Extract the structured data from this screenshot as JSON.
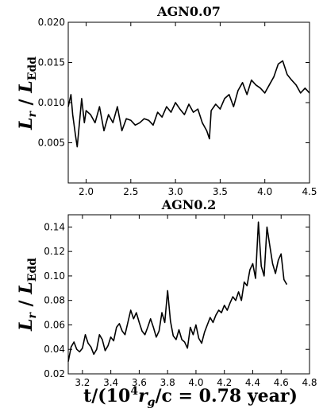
{
  "chart_data": [
    {
      "type": "line",
      "title": "AGN0.07",
      "ylabel": "L_r / L_Edd",
      "ylabel_main": "L",
      "ylabel_sub": "r",
      "ylabel_den": "L",
      "ylabel_den_sub": "Edd",
      "ylabel_sep": " / ",
      "xlabel": "",
      "xlim": [
        1.8,
        4.5
      ],
      "ylim": [
        0.0,
        0.02
      ],
      "xticks": [
        2.0,
        2.5,
        3.0,
        3.5,
        4.0,
        4.5
      ],
      "xtick_labels": [
        "2.0",
        "2.5",
        "3.0",
        "3.5",
        "4.0",
        "4.5"
      ],
      "yticks": [
        0.005,
        0.01,
        0.015,
        0.02
      ],
      "ytick_labels": [
        "0.005",
        "0.010",
        "0.015",
        "0.020"
      ],
      "grid": false,
      "series": [
        {
          "color": "#000000",
          "x": [
            1.8,
            1.83,
            1.85,
            1.88,
            1.9,
            1.93,
            1.95,
            1.98,
            2.0,
            2.05,
            2.1,
            2.15,
            2.2,
            2.25,
            2.3,
            2.35,
            2.4,
            2.45,
            2.5,
            2.55,
            2.6,
            2.65,
            2.7,
            2.75,
            2.8,
            2.85,
            2.9,
            2.95,
            3.0,
            3.05,
            3.1,
            3.15,
            3.2,
            3.25,
            3.3,
            3.35,
            3.38,
            3.4,
            3.45,
            3.5,
            3.55,
            3.6,
            3.65,
            3.7,
            3.75,
            3.8,
            3.85,
            3.9,
            3.95,
            4.0,
            4.05,
            4.1,
            4.15,
            4.2,
            4.25,
            4.3,
            4.35,
            4.4,
            4.45,
            4.5
          ],
          "y": [
            0.0095,
            0.011,
            0.0085,
            0.006,
            0.0045,
            0.008,
            0.0105,
            0.0075,
            0.009,
            0.0085,
            0.0075,
            0.0095,
            0.0065,
            0.0085,
            0.0075,
            0.0095,
            0.0065,
            0.008,
            0.0078,
            0.0072,
            0.0075,
            0.008,
            0.0078,
            0.0072,
            0.0088,
            0.0082,
            0.0095,
            0.0088,
            0.01,
            0.0092,
            0.0085,
            0.0098,
            0.0088,
            0.0092,
            0.0075,
            0.0065,
            0.0055,
            0.009,
            0.0098,
            0.0092,
            0.0105,
            0.011,
            0.0095,
            0.0115,
            0.0125,
            0.011,
            0.0128,
            0.0122,
            0.0118,
            0.0112,
            0.0122,
            0.0132,
            0.0148,
            0.0152,
            0.0135,
            0.0128,
            0.0122,
            0.0112,
            0.0118,
            0.0112
          ]
        }
      ]
    },
    {
      "type": "line",
      "title": "AGN0.2",
      "ylabel": "L_r / L_Edd",
      "ylabel_main": "L",
      "ylabel_sub": "r",
      "ylabel_den": "L",
      "ylabel_den_sub": "Edd",
      "ylabel_sep": " / ",
      "xlabel": "t/(10^4 r_g/c = 0.78 year)",
      "xlabel_pre": "t/(10",
      "xlabel_sup": "4",
      "xlabel_mid": "r",
      "xlabel_sub": "g",
      "xlabel_post": "/c = 0.78 year)",
      "xlim": [
        3.1,
        4.8
      ],
      "ylim": [
        0.02,
        0.15
      ],
      "xticks": [
        3.2,
        3.4,
        3.6,
        3.8,
        4.0,
        4.2,
        4.4,
        4.6,
        4.8
      ],
      "xtick_labels": [
        "3.2",
        "3.4",
        "3.6",
        "3.8",
        "4.0",
        "4.2",
        "4.4",
        "4.6",
        "4.8"
      ],
      "yticks": [
        0.02,
        0.04,
        0.06,
        0.08,
        0.1,
        0.12,
        0.14
      ],
      "ytick_labels": [
        "0.02",
        "0.04",
        "0.06",
        "0.08",
        "0.10",
        "0.12",
        "0.14"
      ],
      "grid": false,
      "series": [
        {
          "color": "#000000",
          "x": [
            3.1,
            3.12,
            3.14,
            3.16,
            3.18,
            3.2,
            3.22,
            3.24,
            3.26,
            3.28,
            3.3,
            3.32,
            3.34,
            3.36,
            3.38,
            3.4,
            3.42,
            3.44,
            3.46,
            3.48,
            3.5,
            3.52,
            3.54,
            3.56,
            3.58,
            3.6,
            3.62,
            3.64,
            3.66,
            3.68,
            3.7,
            3.72,
            3.74,
            3.76,
            3.78,
            3.8,
            3.82,
            3.84,
            3.86,
            3.88,
            3.9,
            3.92,
            3.94,
            3.96,
            3.98,
            4.0,
            4.02,
            4.04,
            4.06,
            4.08,
            4.1,
            4.12,
            4.14,
            4.16,
            4.18,
            4.2,
            4.22,
            4.24,
            4.26,
            4.28,
            4.3,
            4.32,
            4.34,
            4.36,
            4.38,
            4.4,
            4.42,
            4.44,
            4.46,
            4.48,
            4.5,
            4.52,
            4.54,
            4.56,
            4.58,
            4.6,
            4.62,
            4.64
          ],
          "y": [
            0.03,
            0.042,
            0.046,
            0.04,
            0.038,
            0.041,
            0.052,
            0.045,
            0.042,
            0.036,
            0.04,
            0.052,
            0.048,
            0.039,
            0.043,
            0.05,
            0.047,
            0.058,
            0.061,
            0.055,
            0.052,
            0.062,
            0.072,
            0.065,
            0.07,
            0.062,
            0.055,
            0.052,
            0.058,
            0.065,
            0.058,
            0.05,
            0.055,
            0.07,
            0.062,
            0.088,
            0.063,
            0.051,
            0.048,
            0.056,
            0.048,
            0.046,
            0.041,
            0.058,
            0.052,
            0.06,
            0.049,
            0.045,
            0.054,
            0.06,
            0.066,
            0.062,
            0.068,
            0.072,
            0.07,
            0.076,
            0.072,
            0.078,
            0.083,
            0.08,
            0.087,
            0.08,
            0.095,
            0.092,
            0.105,
            0.11,
            0.098,
            0.144,
            0.108,
            0.1,
            0.14,
            0.125,
            0.11,
            0.102,
            0.113,
            0.118,
            0.097,
            0.093
          ]
        }
      ]
    }
  ]
}
